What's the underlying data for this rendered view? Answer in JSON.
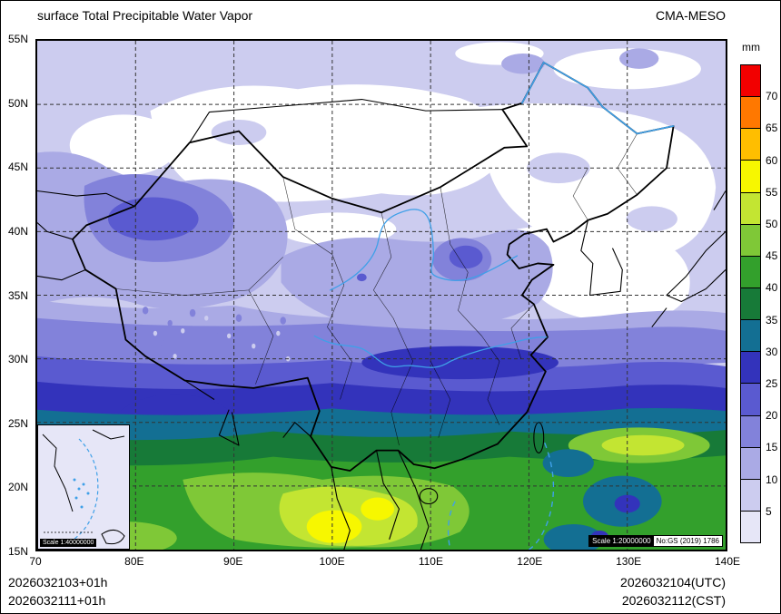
{
  "header": {
    "title": "surface Total Precipitable Water Vapor",
    "model": "CMA-MESO"
  },
  "colorbar": {
    "unit": "mm",
    "tick_labels": [
      "70",
      "65",
      "60",
      "55",
      "50",
      "45",
      "40",
      "35",
      "30",
      "25",
      "20",
      "15",
      "10",
      "5"
    ],
    "colors_top_to_bottom": [
      "#f20000",
      "#ff7800",
      "#ffbe00",
      "#f7f700",
      "#c3e532",
      "#7fc837",
      "#33a02c",
      "#177a38",
      "#136f93",
      "#3333bb",
      "#5a5ad0",
      "#8282da",
      "#aaaae5",
      "#ccccef",
      "#e6e6f7"
    ]
  },
  "map": {
    "x_tick_labels": [
      "70",
      "80E",
      "90E",
      "100E",
      "110E",
      "120E",
      "130E",
      "140E"
    ],
    "y_tick_labels": [
      "55N",
      "50N",
      "45N",
      "40N",
      "35N",
      "30N",
      "25N",
      "20N",
      "15N"
    ],
    "inset_scale_label": "Scale 1:40000000",
    "scale_label": "Scale 1:20000000",
    "gs_number": "No:GS (2019) 1786"
  },
  "footer": {
    "left_line1": "2026032103+01h",
    "left_line2": "2026032111+01h",
    "right_line1": "2026032104(UTC)",
    "right_line2": "2026032112(CST)"
  },
  "chart_data": {
    "type": "heatmap",
    "title": "surface Total Precipitable Water Vapor",
    "unit": "mm",
    "levels": [
      5,
      10,
      15,
      20,
      25,
      30,
      35,
      40,
      45,
      50,
      55,
      60,
      65,
      70
    ],
    "lon_range": [
      70,
      140
    ],
    "lat_range": [
      15,
      55
    ],
    "legend_position": "right"
  }
}
